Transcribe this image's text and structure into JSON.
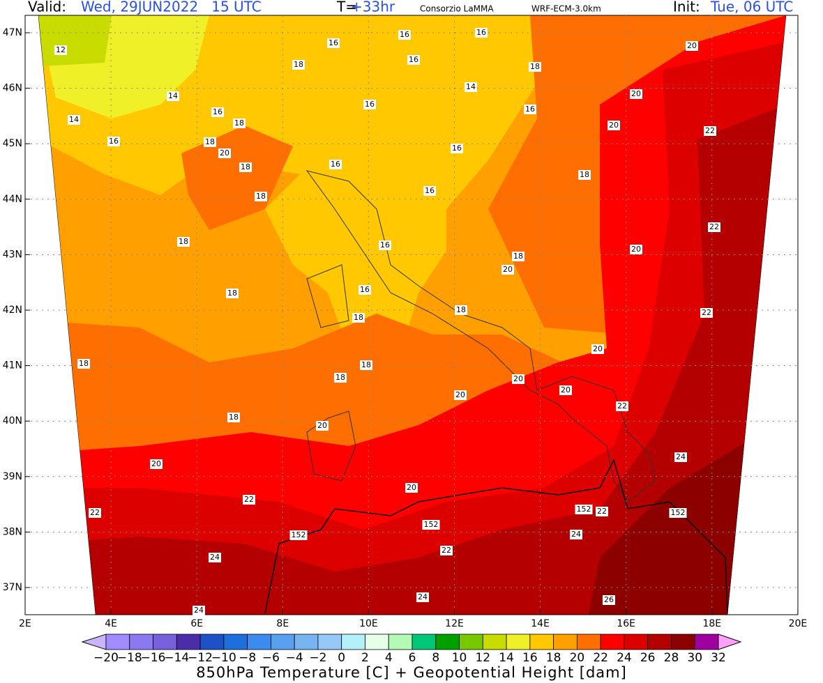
{
  "header": {
    "valid_label": "Valid:",
    "valid_time": "Wed, 29JUN2022   15 UTC",
    "step_label": "T=",
    "step": "+33hr",
    "producer": "Consorzio LaMMA",
    "model": "WRF-ECM-3.0km",
    "init_label": "Init:",
    "init_time": "Tue, 06 UTC"
  },
  "map": {
    "lat_labels": [
      "47N",
      "46N",
      "45N",
      "44N",
      "43N",
      "42N",
      "41N",
      "40N",
      "39N",
      "38N",
      "37N"
    ],
    "lon_labels": [
      "2E",
      "4E",
      "6E",
      "8E",
      "10E",
      "12E",
      "14E",
      "16E",
      "18E",
      "20E"
    ],
    "contour_labels": [
      "12",
      "16",
      "16",
      "16",
      "20",
      "18",
      "16",
      "18",
      "14",
      "14",
      "20",
      "16",
      "16",
      "16",
      "14",
      "18",
      "20",
      "22",
      "16",
      "18",
      "20",
      "16",
      "18",
      "16",
      "18",
      "16",
      "18",
      "22",
      "18",
      "16",
      "20",
      "18",
      "20",
      "18",
      "16",
      "22",
      "18",
      "18",
      "20",
      "18",
      "18",
      "18",
      "20",
      "20",
      "20",
      "22",
      "18",
      "20",
      "24",
      "20",
      "20",
      "22",
      "22",
      "152",
      "22",
      "152",
      "152",
      "152",
      "24",
      "22",
      "24",
      "24",
      "26",
      "24"
    ]
  },
  "colorbar": {
    "labels": [
      "−20",
      "−18",
      "−16",
      "−14",
      "−12",
      "−10",
      "−8",
      "−6",
      "−4",
      "−2",
      "0",
      "2",
      "4",
      "6",
      "8",
      "10",
      "12",
      "14",
      "16",
      "18",
      "20",
      "22",
      "24",
      "26",
      "28",
      "30",
      "32"
    ],
    "colors": [
      "#c8b4ff",
      "#a08cff",
      "#8c78f0",
      "#7860dc",
      "#4b2daa",
      "#1e50c8",
      "#1e6edc",
      "#3c8cf0",
      "#5aa0f0",
      "#78b4f0",
      "#96c8f8",
      "#b4f0fa",
      "#e6ffe6",
      "#b4fab4",
      "#00c878",
      "#00a000",
      "#78c800",
      "#c8dc00",
      "#f0f028",
      "#ffc800",
      "#ffa000",
      "#ff6e00",
      "#ff0000",
      "#dc0000",
      "#b40000",
      "#8c0000",
      "#a000a0",
      "#ff00ff",
      "#ffa0ff"
    ],
    "title": "850hPa Temperature [C] + Geopotential Height [dam]"
  }
}
